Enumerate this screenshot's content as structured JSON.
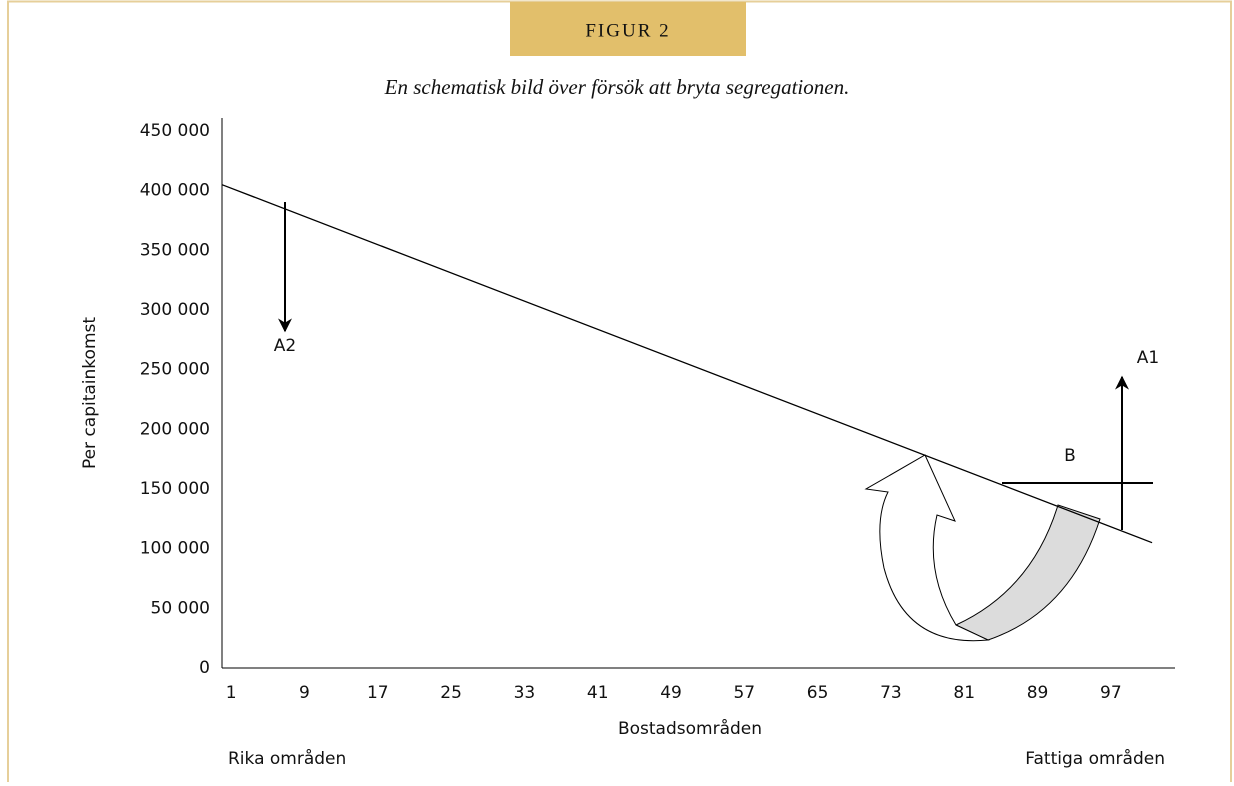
{
  "header": {
    "tab": "FIGUR 2"
  },
  "chart_data": {
    "type": "line",
    "title": "En schematisk bild över försök att bryta segregationen.",
    "y_label": "Per capitainkomst",
    "x_label": "Bostadsområden",
    "x_left_note": "Rika områden",
    "x_right_note": "Fattiga områden",
    "series": [
      {
        "x": [
          0,
          101.5
        ],
        "values": [
          405000,
          105000
        ],
        "color": "#000000"
      }
    ],
    "xlim": [
      0,
      104
    ],
    "xticks": [
      1,
      9,
      17,
      25,
      33,
      41,
      49,
      57,
      65,
      73,
      81,
      89,
      97
    ],
    "ylim": [
      0,
      455000
    ],
    "yticks": [
      0,
      {
        "value": 50000,
        "label": "50 000"
      },
      {
        "value": 100000,
        "label": "100 000"
      },
      {
        "value": 150000,
        "label": "150 000"
      },
      {
        "value": 200000,
        "label": "200 000"
      },
      {
        "value": 250000,
        "label": "250 000"
      },
      {
        "value": 300000,
        "label": "300 000"
      },
      {
        "value": 350000,
        "label": "350 000"
      },
      {
        "value": 400000,
        "label": "400 000"
      },
      {
        "value": 450000,
        "label": "450 000"
      }
    ],
    "grid": false,
    "annotations": [
      "A2",
      "A1",
      "B"
    ]
  }
}
